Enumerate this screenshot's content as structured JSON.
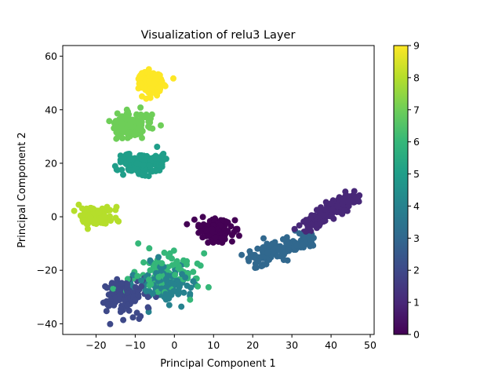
{
  "chart_data": {
    "type": "scatter",
    "title": "Visualization of relu3 Layer",
    "xlabel": "Principal Component 1",
    "ylabel": "Principal Component 2",
    "xlim": [
      -28.5,
      51
    ],
    "ylim": [
      -44,
      64
    ],
    "xticks": [
      -20,
      -10,
      0,
      10,
      20,
      30,
      40,
      50
    ],
    "yticks": [
      -40,
      -20,
      0,
      20,
      40,
      60
    ],
    "colormap": "viridis",
    "colorbar": {
      "min": 0,
      "max": 9,
      "ticks": [
        0,
        1,
        2,
        3,
        4,
        5,
        6,
        7,
        8,
        9
      ]
    },
    "grid": false,
    "clusters": [
      {
        "label_value": 0,
        "center": [
          10.5,
          -5
        ],
        "spread": [
          3.5,
          3.2
        ],
        "count": 170
      },
      {
        "label_value": 1,
        "center": [
          40,
          2
        ],
        "spread": [
          5,
          4.5
        ],
        "count": 150
      },
      {
        "label_value": 2,
        "center": [
          -13,
          -29
        ],
        "spread": [
          5,
          5.5
        ],
        "count": 120
      },
      {
        "label_value": 3,
        "center": [
          29,
          -12
        ],
        "spread": [
          6,
          2.5
        ],
        "count": 150
      },
      {
        "label_value": 4,
        "center": [
          -2,
          -25
        ],
        "spread": [
          6,
          6
        ],
        "count": 120
      },
      {
        "label_value": 5,
        "center": [
          -8,
          20
        ],
        "spread": [
          4.5,
          3
        ],
        "count": 150
      },
      {
        "label_value": 6,
        "center": [
          -3,
          -22
        ],
        "spread": [
          7,
          7
        ],
        "count": 90
      },
      {
        "label_value": 7,
        "center": [
          -11,
          34
        ],
        "spread": [
          4,
          4
        ],
        "count": 140
      },
      {
        "label_value": 8,
        "center": [
          -20,
          0
        ],
        "spread": [
          3.5,
          3.5
        ],
        "count": 110
      },
      {
        "label_value": 9,
        "center": [
          -6,
          50
        ],
        "spread": [
          2.5,
          3.5
        ],
        "count": 160
      }
    ]
  }
}
